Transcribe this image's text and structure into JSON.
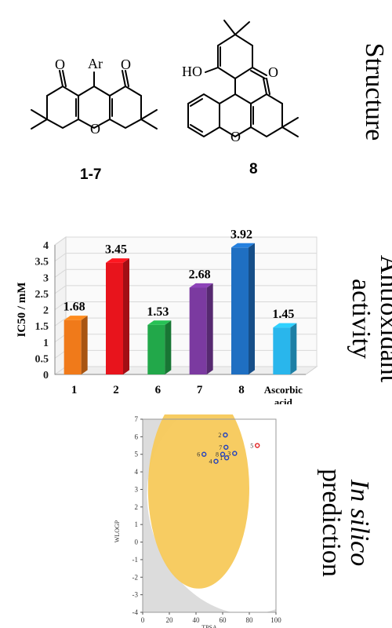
{
  "side_labels": {
    "structure": "Structure",
    "antioxidant_line1": "Antioxidant",
    "antioxidant_line2": "activity",
    "insilico_line1": "In silico",
    "insilico_line2": "prediction"
  },
  "structures": {
    "compound_a_label": "1-7",
    "compound_b_label": "8",
    "atom_O": "O",
    "atom_Ar": "Ar",
    "atom_HO": "HO"
  },
  "chart_data": [
    {
      "type": "bar",
      "ylabel": "IC50 / mM",
      "ylim": [
        0,
        4
      ],
      "yticks": [
        "0",
        "0.5",
        "1",
        "1.5",
        "2",
        "2.5",
        "3",
        "3.5",
        "4"
      ],
      "categories": [
        "1",
        "2",
        "6",
        "7",
        "8",
        "Ascorbic acid"
      ],
      "category_lines": [
        [
          "1"
        ],
        [
          "2"
        ],
        [
          "6"
        ],
        [
          "7"
        ],
        [
          "8"
        ],
        [
          "Ascorbic",
          "acid"
        ]
      ],
      "values": [
        1.68,
        3.45,
        1.53,
        2.68,
        3.92,
        1.45
      ],
      "data_labels": [
        "1.68",
        "3.45",
        "1.53",
        "2.68",
        "3.92",
        "1.45"
      ],
      "colors": [
        "#f07a1a",
        "#e8141c",
        "#22a84a",
        "#7b3aa0",
        "#1f6fc2",
        "#29b6ec"
      ],
      "grid": true
    },
    {
      "type": "scatter",
      "xlabel": "TPSA",
      "ylabel": "WLOGP",
      "xlim": [
        0,
        100
      ],
      "ylim": [
        -4,
        7
      ],
      "xticks": [
        "0",
        "20",
        "40",
        "60",
        "80",
        "100"
      ],
      "yticks": [
        "-4",
        "-3",
        "-2",
        "-1",
        "0",
        "1",
        "2",
        "3",
        "4",
        "5",
        "6",
        "7"
      ],
      "points": [
        {
          "label": "2",
          "x": 62,
          "y": 6.1,
          "color": "#2040c0"
        },
        {
          "label": "7",
          "x": 62.5,
          "y": 5.4,
          "color": "#2040c0"
        },
        {
          "label": "6",
          "x": 46,
          "y": 5.0,
          "color": "#2040c0"
        },
        {
          "label": "8",
          "x": 60,
          "y": 5.0,
          "color": "#2040c0"
        },
        {
          "label": "3",
          "x": 69,
          "y": 5.05,
          "color": "#2040c0"
        },
        {
          "label": "1",
          "x": 63,
          "y": 4.8,
          "color": "#2040c0"
        },
        {
          "label": "4",
          "x": 55,
          "y": 4.6,
          "color": "#2040c0"
        },
        {
          "label": "5",
          "x": 86,
          "y": 5.5,
          "color": "#e02020"
        }
      ]
    }
  ]
}
